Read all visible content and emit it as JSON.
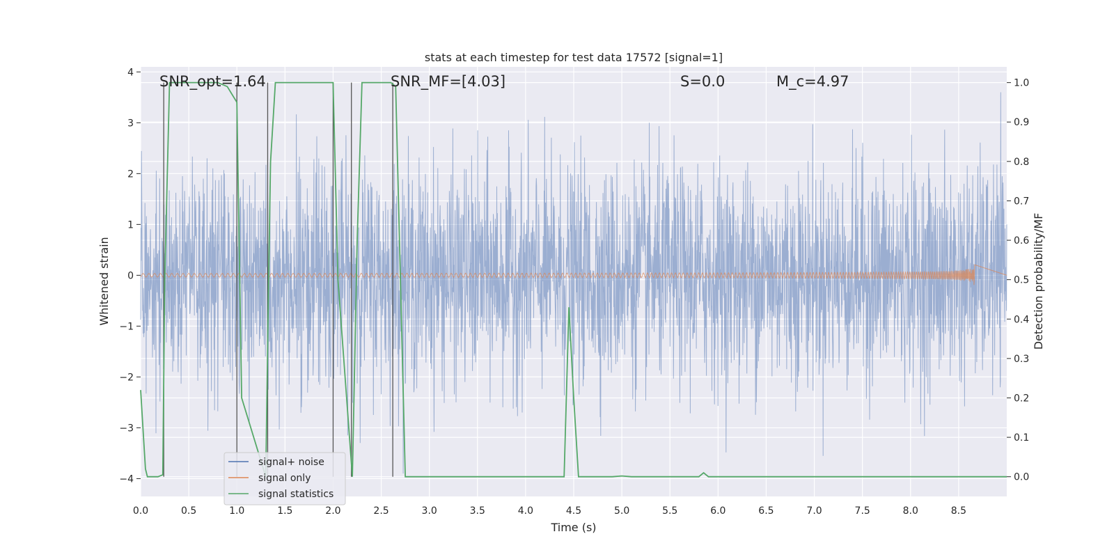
{
  "chart_data": {
    "type": "line",
    "title": "stats at each timestep for test data 17572 [signal=1]",
    "xlabel": "Time (s)",
    "ylabel_left": "Whitened strain",
    "ylabel_right": "Detection probability/MF",
    "xlim": [
      0.0,
      9.0
    ],
    "ylim_left": [
      -4.35,
      4.1
    ],
    "ylim_right": [
      -0.05,
      1.04
    ],
    "xticks": [
      "0.0",
      "0.5",
      "1.0",
      "1.5",
      "2.0",
      "2.5",
      "3.0",
      "3.5",
      "4.0",
      "4.5",
      "5.0",
      "5.5",
      "6.0",
      "6.5",
      "7.0",
      "7.5",
      "8.0",
      "8.5"
    ],
    "yticks_left": [
      "4",
      "3",
      "2",
      "1",
      "0",
      "−1",
      "−2",
      "−3",
      "−4"
    ],
    "yticks_right": [
      "1.0",
      "0.9",
      "0.8",
      "0.7",
      "0.6",
      "0.5",
      "0.4",
      "0.3",
      "0.2",
      "0.1",
      "0.0"
    ],
    "annotations": [
      {
        "text": "SNR_opt=1.64",
        "x": 0.19,
        "y": 3.65
      },
      {
        "text": "SNR_MF=[4.03]",
        "x": 2.6,
        "y": 3.65
      },
      {
        "text": "S=0.0",
        "x": 5.6,
        "y": 3.65
      },
      {
        "text": "M_c=4.97",
        "x": 6.6,
        "y": 3.65
      }
    ],
    "legend": {
      "placement": "lower-left",
      "entries": [
        "signal+ noise",
        "signal only",
        "signal statistics"
      ]
    },
    "series": [
      {
        "name": "signal+ noise",
        "color": "#4C72B0",
        "description": "whitened strain noise, approx. gaussian, sigma ~1.0, peaks up to ~3.6"
      },
      {
        "name": "signal only",
        "color": "#DD8452",
        "description": "chirp waveform growing in amplitude until merger near t=8.67 s (peak amplitude ~0.25)",
        "merger_time": 8.67,
        "peak_amplitude": 0.25
      },
      {
        "name": "signal statistics",
        "color": "#55A868",
        "t": [
          0.0,
          0.05,
          0.07,
          0.18,
          0.23,
          0.25,
          0.3,
          0.35,
          0.5,
          0.6,
          0.8,
          0.9,
          0.95,
          1.0,
          1.05,
          1.3,
          1.33,
          1.35,
          1.4,
          1.9,
          2.0,
          2.05,
          2.2,
          2.25,
          2.3,
          2.5,
          2.6,
          2.65,
          2.75,
          4.0,
          4.4,
          4.45,
          4.5,
          4.55,
          4.9,
          5.0,
          5.1,
          5.8,
          5.85,
          5.9,
          9.0
        ],
        "values": [
          0.22,
          0.02,
          0.0,
          0.0,
          0.005,
          0.5,
          1.0,
          1.0,
          1.0,
          1.0,
          1.0,
          0.99,
          0.97,
          0.95,
          0.2,
          0.0,
          0.5,
          0.8,
          1.0,
          1.0,
          1.0,
          0.5,
          0.0,
          0.6,
          1.0,
          1.0,
          1.0,
          0.99,
          0.0,
          0.0,
          0.0,
          0.43,
          0.2,
          0.0,
          0.0,
          0.002,
          0.0,
          0.0,
          0.01,
          0.0,
          0.0
        ]
      }
    ],
    "vertical_lines": [
      0.24,
      1.0,
      1.32,
      2.0,
      2.19,
      2.62
    ]
  }
}
